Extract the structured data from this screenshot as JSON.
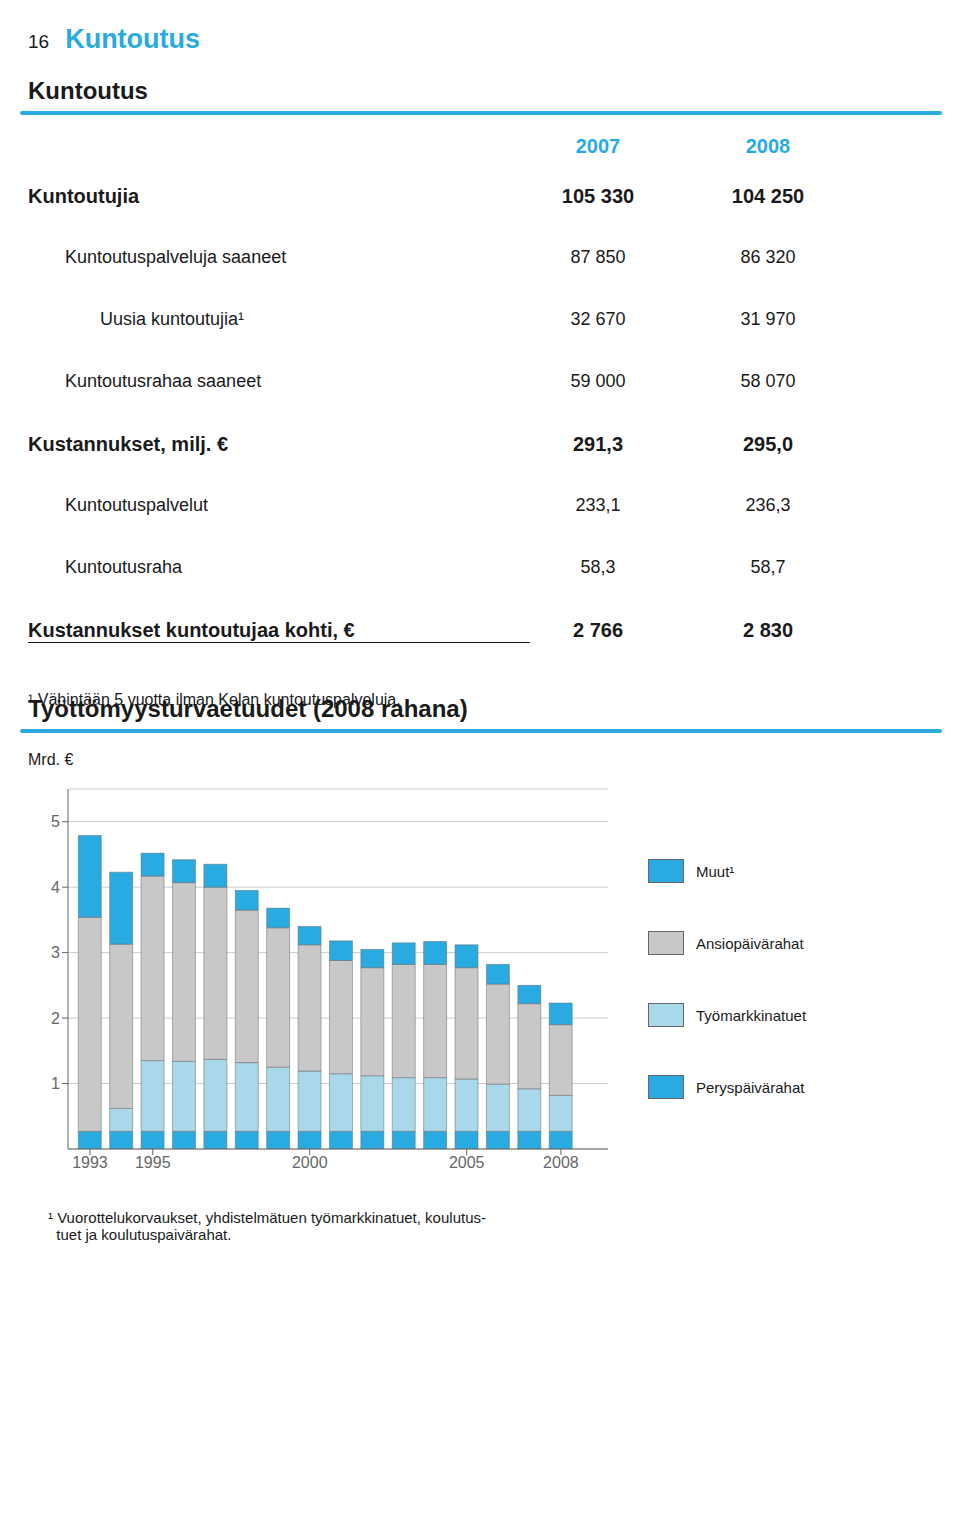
{
  "chart_data": [
    {
      "type": "table",
      "title": "Kuntoutus",
      "annotations": [
        "16",
        "Kuntoutus",
        "¹  Vähintään 5 vuotta ilman Kelan kuntoutuspalveluja."
      ],
      "categories": [
        "Kuntoutujia",
        "Kuntoutuspalveluja saaneet",
        "Uusia kuntoutujia¹",
        "Kuntoutusrahaa saaneet",
        "Kustannukset, milj. €",
        "Kuntoutuspalvelut",
        "Kuntoutusraha",
        "Kustannukset kuntoutujaa kohti, €"
      ],
      "data_labels": true,
      "series": [
        {
          "name": "2007",
          "color": "#29ABE2",
          "values": [
            105330,
            87850,
            32670,
            59000,
            291.3,
            233.1,
            58.3,
            2766
          ],
          "value_labels": [
            "105 330",
            "87 850",
            "32 670",
            "59 000",
            "291,3",
            "233,1",
            "58,3",
            "2 766"
          ]
        },
        {
          "name": "2008",
          "color": "#29ABE2",
          "values": [
            104250,
            86320,
            31970,
            58070,
            295.0,
            236.3,
            58.7,
            2830
          ],
          "value_labels": [
            "104 250",
            "86 320",
            "31 970",
            "58 070",
            "295,0",
            "236,3",
            "58,7",
            "2 830"
          ]
        }
      ]
    },
    {
      "type": "bar",
      "title": "Työttömyysturvaetuudet (2008 rahana)",
      "y_label": "Mrd. €",
      "stacked": true,
      "grid": true,
      "legend": "right",
      "annotations": [
        "¹ Vuorottelukorvaukset, yhdistelmätuen työmarkkinatuet, koulutus-",
        "  tuet ja koulutuspaivärahat."
      ],
      "x": [
        1993,
        1994,
        1995,
        1996,
        1997,
        1998,
        1999,
        2000,
        2001,
        2002,
        2003,
        2004,
        2005,
        2006,
        2007,
        2008
      ],
      "xlim": [
        1992.3,
        2009.5
      ],
      "xticks": [
        1993,
        1995,
        2000,
        2005,
        2008
      ],
      "ylim": [
        0,
        5.5
      ],
      "yticks": [
        1,
        2,
        3,
        4,
        5
      ],
      "series": [
        {
          "name": "Perуspäivärahat",
          "color": "#29ABE2",
          "values": [
            0.27,
            0.27,
            0.27,
            0.27,
            0.27,
            0.27,
            0.27,
            0.27,
            0.27,
            0.27,
            0.27,
            0.27,
            0.27,
            0.27,
            0.27,
            0.27
          ]
        },
        {
          "name": "Työmarkkinatuet",
          "color": "#A8D8EA",
          "values": [
            0.0,
            0.35,
            1.08,
            1.07,
            1.1,
            1.05,
            0.98,
            0.92,
            0.88,
            0.85,
            0.82,
            0.82,
            0.8,
            0.72,
            0.65,
            0.55
          ]
        },
        {
          "name": "Ansiopäivärahat",
          "color": "#C8C8C8",
          "values": [
            3.27,
            2.51,
            2.82,
            2.73,
            2.63,
            2.33,
            2.13,
            1.93,
            1.73,
            1.65,
            1.73,
            1.73,
            1.7,
            1.53,
            1.3,
            1.08
          ]
        },
        {
          "name": "Muut¹",
          "color": "#29ABE2",
          "values": [
            1.25,
            1.1,
            0.35,
            0.35,
            0.35,
            0.3,
            0.3,
            0.28,
            0.3,
            0.28,
            0.33,
            0.35,
            0.35,
            0.3,
            0.28,
            0.33
          ]
        }
      ]
    }
  ]
}
